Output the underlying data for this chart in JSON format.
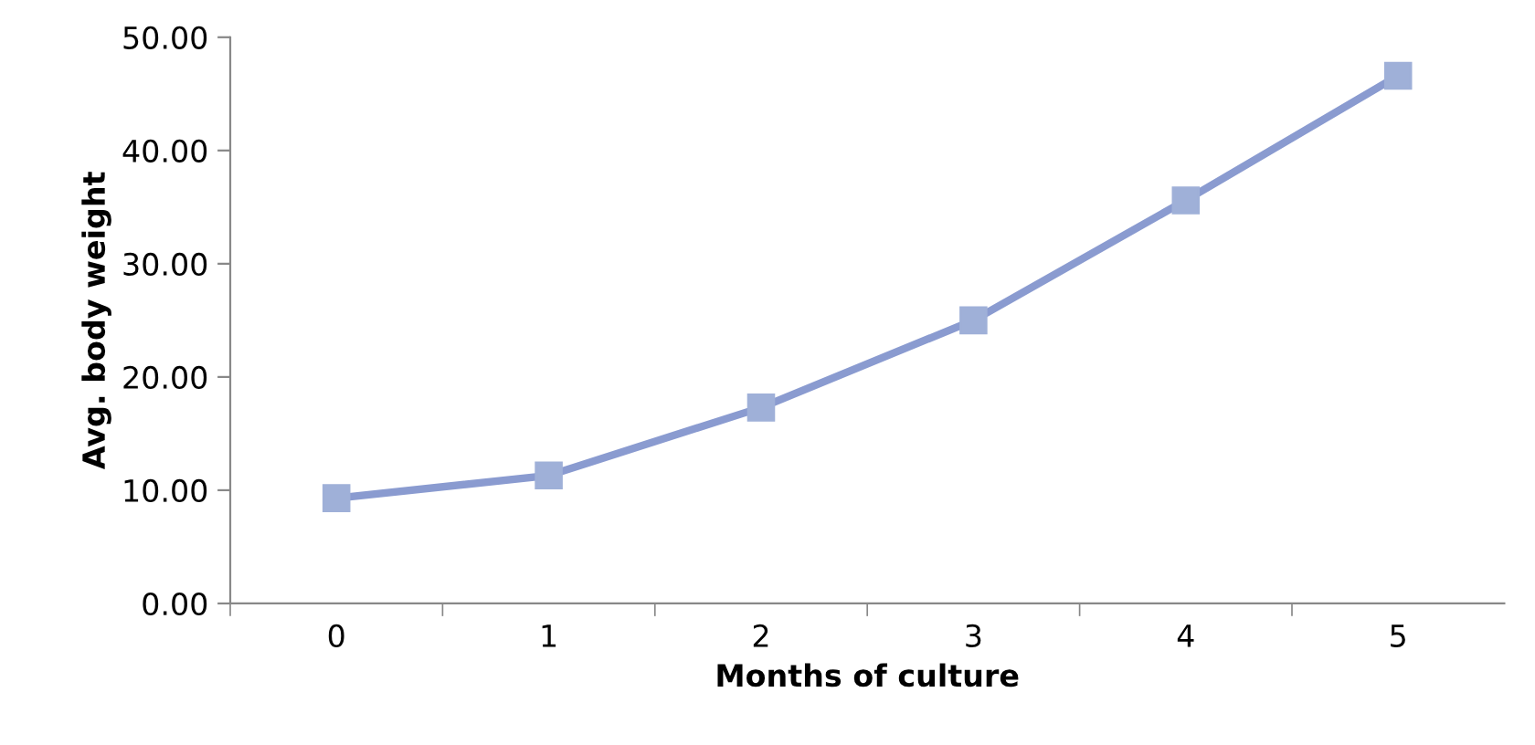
{
  "chart_data": {
    "type": "line",
    "xlabel": "Months of culture",
    "ylabel": "Avg. body weight",
    "categories": [
      "0",
      "1",
      "2",
      "3",
      "4",
      "5"
    ],
    "series": [
      {
        "color": "#8a9bd0",
        "values": [
          9.3,
          11.3,
          17.3,
          25.0,
          35.6,
          46.6
        ]
      }
    ],
    "ylim": [
      0,
      50
    ],
    "yticks": [
      {
        "value": 0,
        "label": "0.00"
      },
      {
        "value": 10,
        "label": "10.00"
      },
      {
        "value": 20,
        "label": "20.00"
      },
      {
        "value": 30,
        "label": "30.00"
      },
      {
        "value": 40,
        "label": "40.00"
      },
      {
        "value": 50,
        "label": "50.00"
      }
    ],
    "grid": false,
    "legend": false,
    "marker": "square",
    "line_style": "solid"
  }
}
